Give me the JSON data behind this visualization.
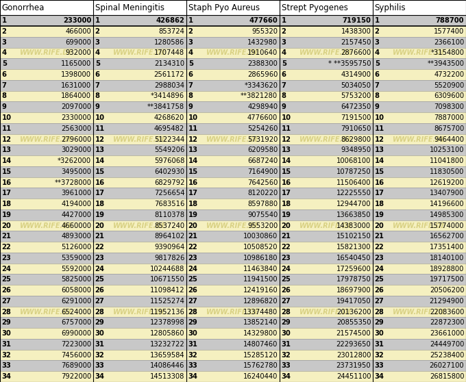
{
  "columns": [
    {
      "header": "Gonorrhea",
      "rows": [
        [
          "1",
          "233000"
        ],
        [
          "2",
          "466000"
        ],
        [
          "3",
          "699000"
        ],
        [
          "4",
          "932000"
        ],
        [
          "5",
          "1165000"
        ],
        [
          "6",
          "1398000"
        ],
        [
          "7",
          "1631000"
        ],
        [
          "8",
          "1864000"
        ],
        [
          "9",
          "2097000"
        ],
        [
          "10",
          "2330000"
        ],
        [
          "11",
          "2563000"
        ],
        [
          "12",
          "2796000"
        ],
        [
          "13",
          "3029000"
        ],
        [
          "14",
          "*3262000"
        ],
        [
          "15",
          "3495000"
        ],
        [
          "16",
          "**3728000"
        ],
        [
          "17",
          "3961000"
        ],
        [
          "18",
          "4194000"
        ],
        [
          "19",
          "4427000"
        ],
        [
          "20",
          "4660000"
        ],
        [
          "21",
          "4893000"
        ],
        [
          "22",
          "5126000"
        ],
        [
          "23",
          "5359000"
        ],
        [
          "24",
          "5592000"
        ],
        [
          "25",
          "5825000"
        ],
        [
          "26",
          "6058000"
        ],
        [
          "27",
          "6291000"
        ],
        [
          "28",
          "6524000"
        ],
        [
          "29",
          "6757000"
        ],
        [
          "30",
          "6990000"
        ],
        [
          "31",
          "7223000"
        ],
        [
          "32",
          "7456000"
        ],
        [
          "33",
          "7689000"
        ],
        [
          "34",
          "7922000"
        ]
      ]
    },
    {
      "header": "Spinal Meningitis",
      "rows": [
        [
          "1",
          "426862"
        ],
        [
          "2",
          "853724"
        ],
        [
          "3",
          "1280586"
        ],
        [
          "4",
          "1707448"
        ],
        [
          "5",
          "2134310"
        ],
        [
          "6",
          "2561172"
        ],
        [
          "7",
          "2988034"
        ],
        [
          "8",
          "*3414896"
        ],
        [
          "9",
          "**3841758"
        ],
        [
          "10",
          "4268620"
        ],
        [
          "11",
          "4695482"
        ],
        [
          "12",
          "5122344"
        ],
        [
          "13",
          "5549206"
        ],
        [
          "14",
          "5976068"
        ],
        [
          "15",
          "6402930"
        ],
        [
          "16",
          "6829792"
        ],
        [
          "17",
          "7256654"
        ],
        [
          "18",
          "7683516"
        ],
        [
          "19",
          "8110378"
        ],
        [
          "20",
          "8537240"
        ],
        [
          "21",
          "8964102"
        ],
        [
          "22",
          "9390964"
        ],
        [
          "23",
          "9817826"
        ],
        [
          "24",
          "10244688"
        ],
        [
          "25",
          "10671550"
        ],
        [
          "26",
          "11098412"
        ],
        [
          "27",
          "11525274"
        ],
        [
          "28",
          "11952136"
        ],
        [
          "29",
          "12378998"
        ],
        [
          "30",
          "12805860"
        ],
        [
          "31",
          "13232722"
        ],
        [
          "32",
          "13659584"
        ],
        [
          "33",
          "14086446"
        ],
        [
          "34",
          "14513308"
        ]
      ]
    },
    {
      "header": "Staph Pyo Aureus",
      "rows": [
        [
          "1",
          "477660"
        ],
        [
          "2",
          "955320"
        ],
        [
          "3",
          "1432980"
        ],
        [
          "4",
          "1910640"
        ],
        [
          "5",
          "2388300"
        ],
        [
          "6",
          "2865960"
        ],
        [
          "7",
          "*3343620"
        ],
        [
          "8",
          "**3821280"
        ],
        [
          "9",
          "4298940"
        ],
        [
          "10",
          "4776600"
        ],
        [
          "11",
          "5254260"
        ],
        [
          "12",
          "5731920"
        ],
        [
          "13",
          "6209580"
        ],
        [
          "14",
          "6687240"
        ],
        [
          "15",
          "7164900"
        ],
        [
          "16",
          "7642560"
        ],
        [
          "17",
          "8120220"
        ],
        [
          "18",
          "8597880"
        ],
        [
          "19",
          "9075540"
        ],
        [
          "20",
          "9553200"
        ],
        [
          "21",
          "10030860"
        ],
        [
          "22",
          "10508520"
        ],
        [
          "23",
          "10986180"
        ],
        [
          "24",
          "11463840"
        ],
        [
          "25",
          "11941500"
        ],
        [
          "26",
          "12419160"
        ],
        [
          "27",
          "12896820"
        ],
        [
          "28",
          "13374480"
        ],
        [
          "29",
          "13852140"
        ],
        [
          "30",
          "14329800"
        ],
        [
          "31",
          "14807460"
        ],
        [
          "32",
          "15285120"
        ],
        [
          "33",
          "15762780"
        ],
        [
          "34",
          "16240440"
        ]
      ]
    },
    {
      "header": "Strept Pyogenes",
      "rows": [
        [
          "1",
          "719150"
        ],
        [
          "2",
          "1438300"
        ],
        [
          "3",
          "2157450"
        ],
        [
          "4",
          "2876600"
        ],
        [
          "5",
          "* **3595750"
        ],
        [
          "6",
          "4314900"
        ],
        [
          "7",
          "5034050"
        ],
        [
          "8",
          "5753200"
        ],
        [
          "9",
          "6472350"
        ],
        [
          "10",
          "7191500"
        ],
        [
          "11",
          "7910650"
        ],
        [
          "12",
          "8629800"
        ],
        [
          "13",
          "9348950"
        ],
        [
          "14",
          "10068100"
        ],
        [
          "15",
          "10787250"
        ],
        [
          "16",
          "11506400"
        ],
        [
          "17",
          "12225550"
        ],
        [
          "18",
          "12944700"
        ],
        [
          "19",
          "13663850"
        ],
        [
          "20",
          "14383000"
        ],
        [
          "21",
          "15102150"
        ],
        [
          "22",
          "15821300"
        ],
        [
          "23",
          "16540450"
        ],
        [
          "24",
          "17259600"
        ],
        [
          "25",
          "17978750"
        ],
        [
          "26",
          "18697900"
        ],
        [
          "27",
          "19417050"
        ],
        [
          "28",
          "20136200"
        ],
        [
          "29",
          "20855350"
        ],
        [
          "30",
          "21574500"
        ],
        [
          "31",
          "22293650"
        ],
        [
          "32",
          "23012800"
        ],
        [
          "33",
          "23731950"
        ],
        [
          "34",
          "24451100"
        ]
      ]
    },
    {
      "header": "Syphilis",
      "rows": [
        [
          "1",
          "788700"
        ],
        [
          "2",
          "1577400"
        ],
        [
          "3",
          "2366100"
        ],
        [
          "4",
          "*3154800"
        ],
        [
          "5",
          "**3943500"
        ],
        [
          "6",
          "4732200"
        ],
        [
          "7",
          "5520900"
        ],
        [
          "8",
          "6309600"
        ],
        [
          "9",
          "7098300"
        ],
        [
          "10",
          "7887000"
        ],
        [
          "11",
          "8675700"
        ],
        [
          "12",
          "9464400"
        ],
        [
          "13",
          "10253100"
        ],
        [
          "14",
          "11041800"
        ],
        [
          "15",
          "11830500"
        ],
        [
          "16",
          "12619200"
        ],
        [
          "17",
          "13407900"
        ],
        [
          "18",
          "14196600"
        ],
        [
          "19",
          "14985300"
        ],
        [
          "20",
          "15774000"
        ],
        [
          "21",
          "16562700"
        ],
        [
          "22",
          "17351400"
        ],
        [
          "23",
          "18140100"
        ],
        [
          "24",
          "18928800"
        ],
        [
          "25",
          "19717500"
        ],
        [
          "26",
          "20506200"
        ],
        [
          "27",
          "21294900"
        ],
        [
          "28",
          "22083600"
        ],
        [
          "29",
          "22872300"
        ],
        [
          "30",
          "23661000"
        ],
        [
          "31",
          "24449700"
        ],
        [
          "32",
          "25238400"
        ],
        [
          "33",
          "26027100"
        ],
        [
          "34",
          "26815800"
        ]
      ]
    }
  ],
  "color_gray": "#c8c8c8",
  "color_yellow": "#f5f0c0",
  "color_white": "#ffffff",
  "color_watermark": "#d4cc7a",
  "watermark_text": "WWW.RIFE.DE",
  "font_size_header": 8.5,
  "font_size_data": 7.2,
  "fig_width": 6.8,
  "fig_height": 5.58,
  "dpi": 100
}
